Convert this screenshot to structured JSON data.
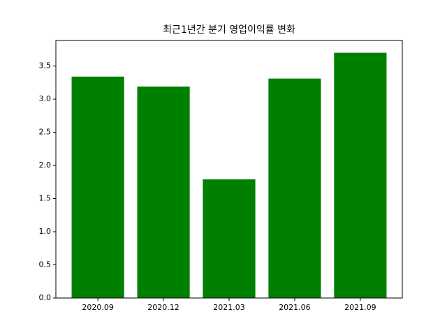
{
  "chart_data": {
    "type": "bar",
    "title": "최근1년간 분기 영업이익률 변화",
    "categories": [
      "2020.09",
      "2020.12",
      "2021.03",
      "2021.06",
      "2021.09"
    ],
    "values": [
      3.34,
      3.19,
      1.79,
      3.31,
      3.7
    ],
    "color": "#008000",
    "ylim": [
      0,
      3.885
    ],
    "yticks": [
      {
        "value": 0,
        "label": "0.0"
      },
      0.5,
      {
        "value": 1,
        "label": "1.0"
      },
      1.5,
      {
        "value": 2,
        "label": "2.0"
      },
      2.5,
      {
        "value": 3,
        "label": "3.0"
      },
      3.5
    ]
  }
}
